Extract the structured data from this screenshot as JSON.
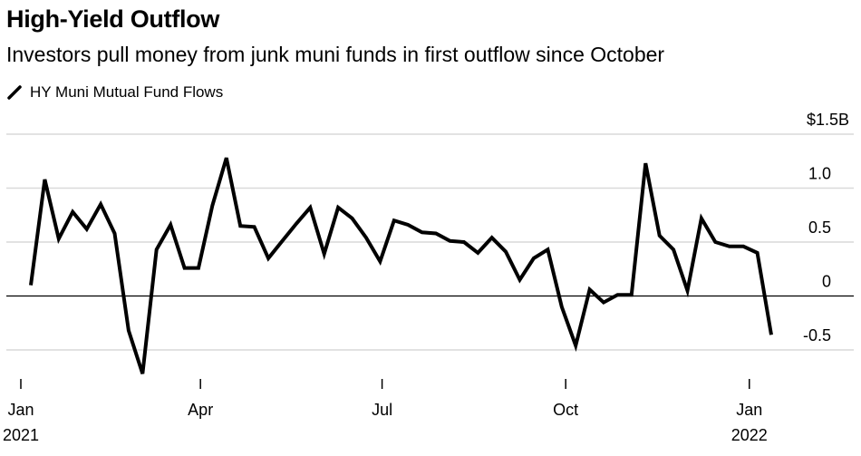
{
  "chart_data": {
    "type": "line",
    "title": "High-Yield Outflow",
    "subtitle": "Investors pull money from junk muni funds in first outflow since October",
    "unit": "$B",
    "series": [
      {
        "name": "HY Muni Mutual Fund Flows",
        "color": "#000000",
        "x": [
          "2021-01-06",
          "2021-01-13",
          "2021-01-20",
          "2021-01-27",
          "2021-02-03",
          "2021-02-10",
          "2021-02-17",
          "2021-02-24",
          "2021-03-03",
          "2021-03-10",
          "2021-03-17",
          "2021-03-24",
          "2021-03-31",
          "2021-04-07",
          "2021-04-14",
          "2021-04-21",
          "2021-04-28",
          "2021-05-05",
          "2021-05-12",
          "2021-05-19",
          "2021-05-26",
          "2021-06-02",
          "2021-06-09",
          "2021-06-16",
          "2021-06-23",
          "2021-06-30",
          "2021-07-07",
          "2021-07-14",
          "2021-07-21",
          "2021-07-28",
          "2021-08-04",
          "2021-08-11",
          "2021-08-18",
          "2021-08-25",
          "2021-09-01",
          "2021-09-08",
          "2021-09-15",
          "2021-09-22",
          "2021-09-29",
          "2021-10-06",
          "2021-10-13",
          "2021-10-20",
          "2021-10-27",
          "2021-11-03",
          "2021-11-10",
          "2021-11-17",
          "2021-11-24",
          "2021-12-01",
          "2021-12-08",
          "2021-12-15",
          "2021-12-22",
          "2021-12-29",
          "2022-01-05",
          "2022-01-12"
        ],
        "values": [
          0.1,
          1.08,
          0.53,
          0.78,
          0.62,
          0.85,
          0.58,
          -0.32,
          -0.72,
          0.43,
          0.66,
          0.26,
          0.26,
          0.84,
          1.28,
          0.65,
          0.64,
          0.35,
          0.51,
          0.67,
          0.82,
          0.39,
          0.82,
          0.72,
          0.54,
          0.32,
          0.7,
          0.66,
          0.59,
          0.58,
          0.51,
          0.5,
          0.4,
          0.54,
          0.41,
          0.15,
          0.35,
          0.43,
          -0.1,
          -0.46,
          0.06,
          -0.06,
          0.01,
          0.01,
          1.23,
          0.56,
          0.43,
          0.05,
          0.72,
          0.5,
          0.46,
          0.46,
          0.4,
          -0.36
        ]
      }
    ],
    "ylim": [
      -0.7,
      1.5
    ],
    "yticks": [
      {
        "value": 1.5,
        "label": "$1.5B"
      },
      {
        "value": 1.0,
        "label": "1.0"
      },
      {
        "value": 0.5,
        "label": "0.5"
      },
      {
        "value": 0.0,
        "label": "0"
      },
      {
        "value": -0.5,
        "label": "-0.5"
      }
    ],
    "xlim": [
      "2021-01-06",
      "2022-01-12"
    ],
    "xticks": [
      {
        "date": "2021-01-01",
        "label": "Jan",
        "sublabel": "2021"
      },
      {
        "date": "2021-04-01",
        "label": "Apr",
        "sublabel": ""
      },
      {
        "date": "2021-07-01",
        "label": "Jul",
        "sublabel": ""
      },
      {
        "date": "2021-10-01",
        "label": "Oct",
        "sublabel": ""
      },
      {
        "date": "2022-01-01",
        "label": "Jan",
        "sublabel": "2022"
      }
    ],
    "grid": true,
    "legend_position": "top-left",
    "zero_line_color": "#000000",
    "grid_color": "#d9d9d9"
  }
}
